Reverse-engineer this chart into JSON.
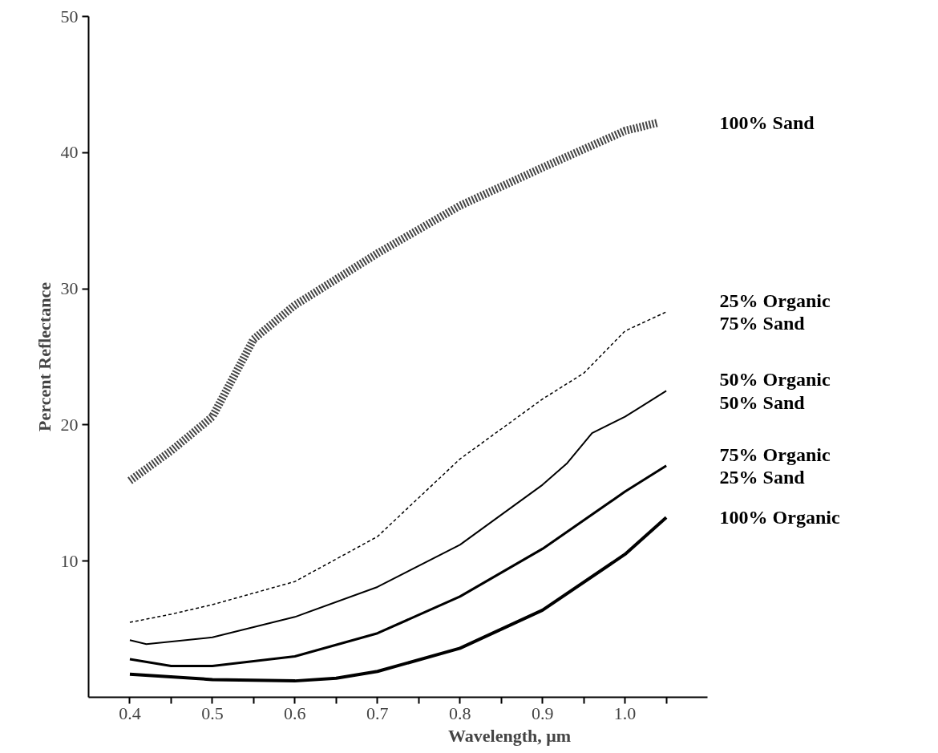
{
  "chart_data": {
    "type": "line",
    "xlabel": "Wavelength, μm",
    "ylabel": "Percent Reflectance",
    "xlim": [
      0.35,
      1.1
    ],
    "ylim": [
      0,
      50
    ],
    "xticks": [
      0.4,
      {
        "value": 0.45,
        "label": null
      },
      0.5,
      {
        "value": 0.55,
        "label": null
      },
      0.6,
      {
        "value": 0.65,
        "label": null
      },
      0.7,
      {
        "value": 0.75,
        "label": null
      },
      0.8,
      {
        "value": 0.85,
        "label": null
      },
      0.9,
      {
        "value": 0.95,
        "label": null
      },
      {
        "value": 1.0,
        "label": "1.0"
      },
      {
        "value": 1.05,
        "label": null
      }
    ],
    "yticks": [
      10,
      20,
      30,
      40,
      50
    ],
    "grid": false,
    "marker": "none",
    "series": [
      {
        "name": "100% Sand",
        "color": "#444444",
        "line_style": "dotted",
        "x": [
          0.4,
          0.45,
          0.5,
          0.55,
          0.6,
          0.7,
          0.8,
          0.9,
          1.0,
          1.04
        ],
        "values": [
          15.9,
          18.1,
          20.6,
          26.3,
          28.8,
          32.6,
          36.1,
          38.9,
          41.6,
          42.2
        ]
      },
      {
        "name": "25% Organic\n75% Sand",
        "color": "#000000",
        "line_style": "dashed",
        "x": [
          0.4,
          0.45,
          0.5,
          0.6,
          0.7,
          0.8,
          0.9,
          0.95,
          1.0,
          1.05
        ],
        "values": [
          5.5,
          6.1,
          6.8,
          8.5,
          11.8,
          17.5,
          21.9,
          23.8,
          26.9,
          28.3
        ]
      },
      {
        "name": "50% Organic\n50% Sand",
        "color": "#000000",
        "line_style": "solid",
        "x": [
          0.4,
          0.42,
          0.5,
          0.6,
          0.7,
          0.8,
          0.9,
          0.93,
          0.96,
          1.0,
          1.05
        ],
        "values": [
          4.2,
          3.9,
          4.4,
          5.9,
          8.1,
          11.2,
          15.6,
          17.2,
          19.4,
          20.6,
          22.5
        ]
      },
      {
        "name": "75% Organic\n25% Sand",
        "color": "#000000",
        "line_style": "solid",
        "x": [
          0.4,
          0.45,
          0.5,
          0.6,
          0.7,
          0.8,
          0.9,
          1.0,
          1.05
        ],
        "values": [
          2.8,
          2.3,
          2.3,
          3.0,
          4.7,
          7.4,
          10.9,
          15.1,
          17.0
        ]
      },
      {
        "name": "100% Organic",
        "color": "#000000",
        "line_style": "solid",
        "x": [
          0.4,
          0.5,
          0.6,
          0.65,
          0.7,
          0.8,
          0.9,
          1.0,
          1.05
        ],
        "values": [
          1.7,
          1.3,
          1.2,
          1.4,
          1.9,
          3.6,
          6.4,
          10.5,
          13.2
        ]
      }
    ]
  }
}
